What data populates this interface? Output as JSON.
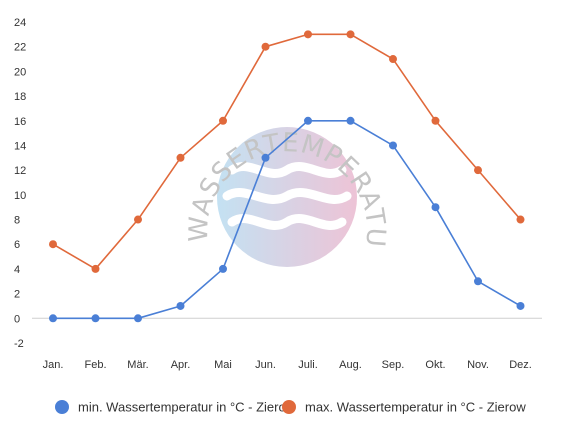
{
  "watermark": {
    "text": "WASSERTEMPERATUR.ORG",
    "gradient_colors": [
      "#b9dcf0",
      "#eab9cf"
    ]
  },
  "chart_data": {
    "type": "line",
    "title": "",
    "xlabel": "",
    "ylabel": "",
    "categories": [
      "Jan.",
      "Feb.",
      "Mär.",
      "Apr.",
      "Mai",
      "Jun.",
      "Juli.",
      "Aug.",
      "Sep.",
      "Okt.",
      "Nov.",
      "Dez."
    ],
    "y_ticks": [
      "-2",
      "0",
      "2",
      "4",
      "6",
      "8",
      "10",
      "12",
      "14",
      "16",
      "18",
      "20",
      "22",
      "24"
    ],
    "ylim": [
      -2,
      24
    ],
    "grid": false,
    "legend_position": "bottom",
    "series": [
      {
        "name": "min. Wassertemperatur in °C - Zierow",
        "color": "#4a7fd6",
        "values": [
          0,
          0,
          0,
          1,
          4,
          13,
          16,
          16,
          14,
          9,
          3,
          1
        ]
      },
      {
        "name": "max. Wassertemperatur in °C - Zierow",
        "color": "#e0693b",
        "values": [
          6,
          4,
          8,
          13,
          16,
          22,
          23,
          23,
          21,
          16,
          12,
          8
        ]
      }
    ]
  }
}
